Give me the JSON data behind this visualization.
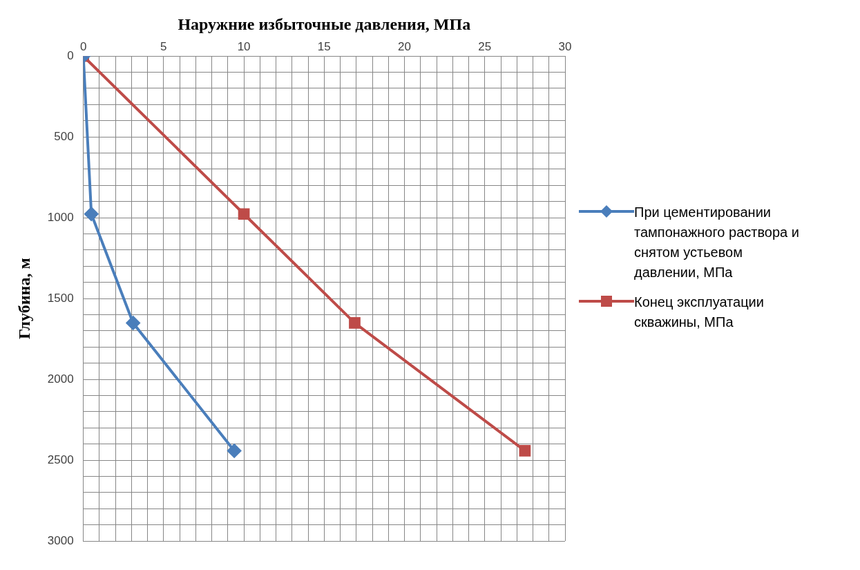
{
  "chart_data": {
    "type": "line",
    "xlabel": "Наружние избыточные давления, МПа",
    "ylabel": "Глубина, м",
    "xlim": [
      0,
      30
    ],
    "ylim": [
      3000,
      0
    ],
    "xticks": [
      0,
      {
        "value": 1,
        "label": null
      },
      {
        "value": 2,
        "label": null
      },
      {
        "value": 3,
        "label": null
      },
      {
        "value": 4,
        "label": null
      },
      5,
      {
        "value": 6,
        "label": null
      },
      {
        "value": 7,
        "label": null
      },
      {
        "value": 8,
        "label": null
      },
      {
        "value": 9,
        "label": null
      },
      10,
      {
        "value": 11,
        "label": null
      },
      {
        "value": 12,
        "label": null
      },
      {
        "value": 13,
        "label": null
      },
      {
        "value": 14,
        "label": null
      },
      15,
      {
        "value": 16,
        "label": null
      },
      {
        "value": 17,
        "label": null
      },
      {
        "value": 18,
        "label": null
      },
      {
        "value": 19,
        "label": null
      },
      20,
      {
        "value": 21,
        "label": null
      },
      {
        "value": 22,
        "label": null
      },
      {
        "value": 23,
        "label": null
      },
      {
        "value": 24,
        "label": null
      },
      25,
      {
        "value": 26,
        "label": null
      },
      {
        "value": 27,
        "label": null
      },
      {
        "value": 28,
        "label": null
      },
      {
        "value": 29,
        "label": null
      },
      30
    ],
    "yticks": [
      0,
      {
        "value": 100,
        "label": null
      },
      {
        "value": 200,
        "label": null
      },
      {
        "value": 300,
        "label": null
      },
      {
        "value": 400,
        "label": null
      },
      500,
      {
        "value": 600,
        "label": null
      },
      {
        "value": 700,
        "label": null
      },
      {
        "value": 800,
        "label": null
      },
      {
        "value": 900,
        "label": null
      },
      1000,
      {
        "value": 1100,
        "label": null
      },
      {
        "value": 1200,
        "label": null
      },
      {
        "value": 1300,
        "label": null
      },
      {
        "value": 1400,
        "label": null
      },
      1500,
      {
        "value": 1600,
        "label": null
      },
      {
        "value": 1700,
        "label": null
      },
      {
        "value": 1800,
        "label": null
      },
      {
        "value": 1900,
        "label": null
      },
      2000,
      {
        "value": 2100,
        "label": null
      },
      {
        "value": 2200,
        "label": null
      },
      {
        "value": 2300,
        "label": null
      },
      {
        "value": 2400,
        "label": null
      },
      2500,
      {
        "value": 2600,
        "label": null
      },
      {
        "value": 2700,
        "label": null
      },
      {
        "value": 2800,
        "label": null
      },
      {
        "value": 2900,
        "label": null
      },
      3000
    ],
    "grid": true,
    "legend": "right",
    "line_style": "solid",
    "series": [
      {
        "name": "При цементировании тампонажного раствора и снятом устьевом давлении, МПа",
        "color": "#4a7ebb",
        "marker": "diamond",
        "x": [
          0,
          0.5,
          3.1,
          9.4
        ],
        "values": [
          0,
          977,
          1651,
          2442
        ]
      },
      {
        "name": "Конец эксплуатации скважины, МПа",
        "color": "#be4b48",
        "marker": "square",
        "x": [
          0,
          10,
          16.9,
          27.5
        ],
        "values": [
          0,
          977,
          1651,
          2442
        ]
      }
    ]
  }
}
